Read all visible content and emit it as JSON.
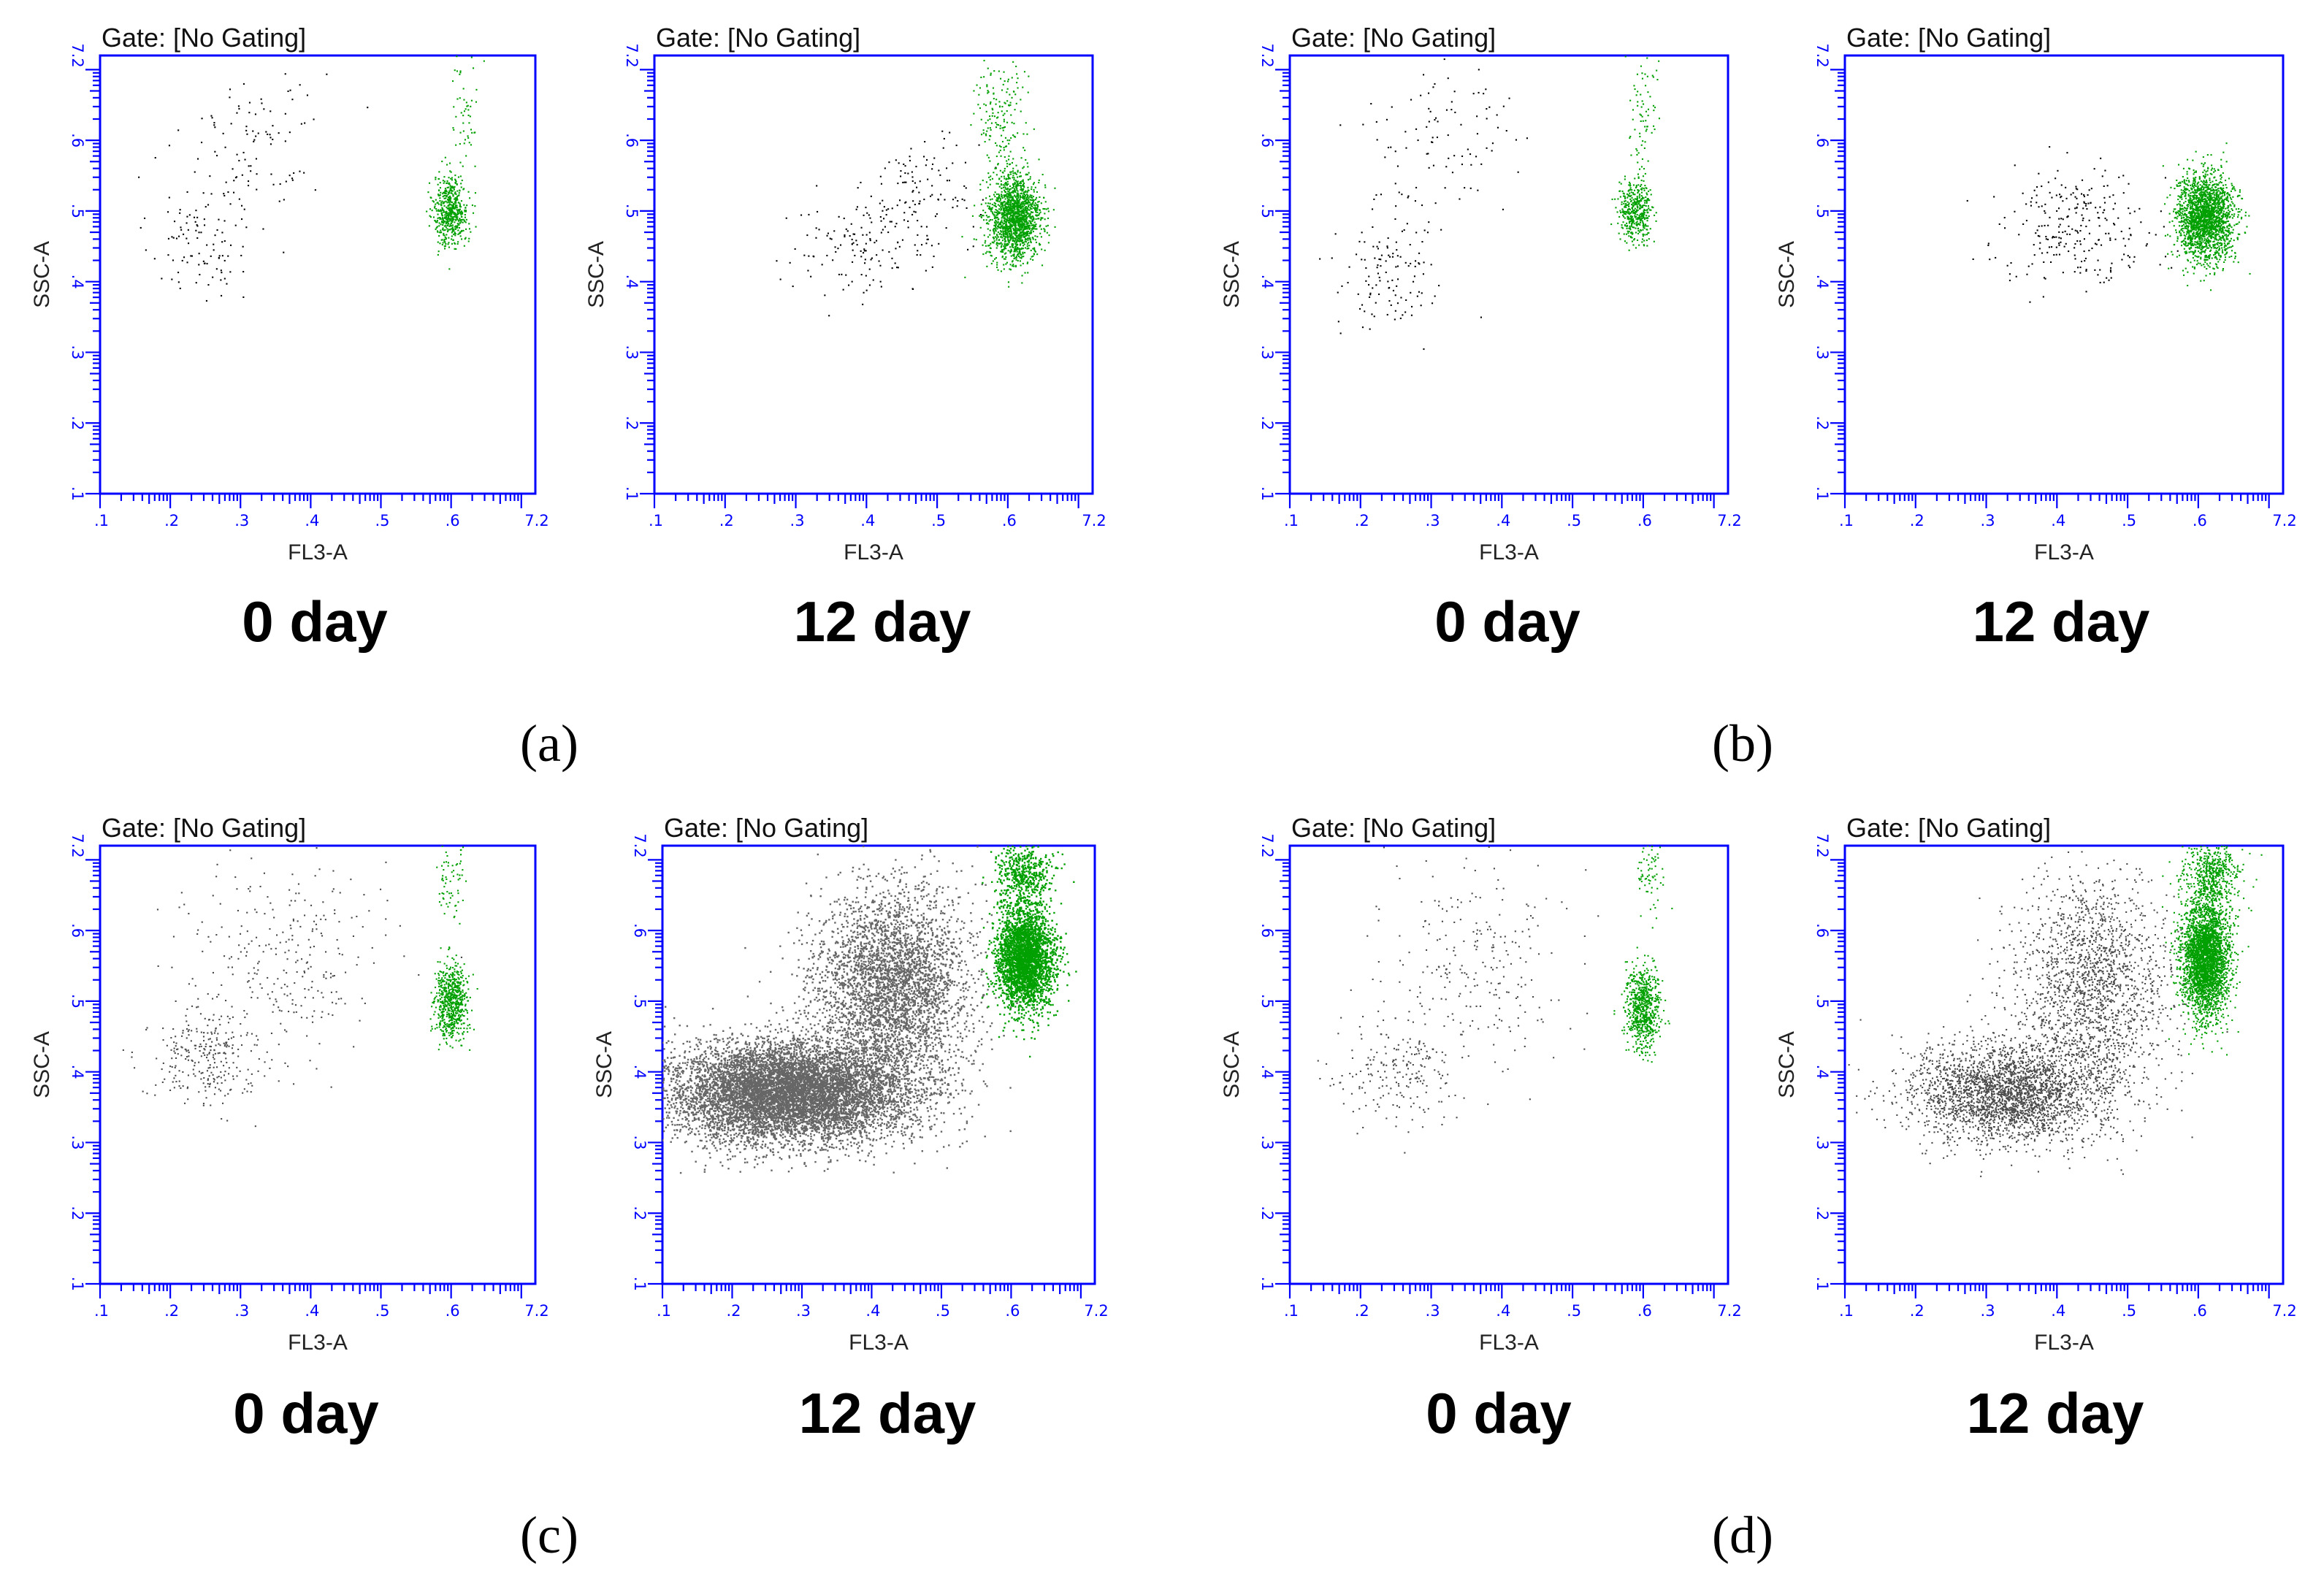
{
  "chart_data": [
    {
      "type": "scatter",
      "panel": "(a)",
      "subtitle": "0 day",
      "gate": "Gate: [No Gating]",
      "xlabel": "FL3-A",
      "ylabel": "SSC-A",
      "xlim": [
        1,
        7.2
      ],
      "ylim": [
        1,
        7.2
      ],
      "ticks": [
        ".1",
        ".2",
        ".3",
        ".4",
        ".5",
        ".6",
        "7.2"
      ],
      "density": 1,
      "series": [
        {
          "name": "gray",
          "color": "#000000",
          "n": 200,
          "clusters": [
            {
              "cx": 2.4,
              "cy": 4.6,
              "sx": 0.35,
              "sy": 0.45,
              "w": 0.5
            },
            {
              "cx": 3.2,
              "cy": 6.0,
              "sx": 0.5,
              "sy": 0.6,
              "w": 0.5
            }
          ]
        },
        {
          "name": "green",
          "color": "#00a000",
          "n": 600,
          "clusters": [
            {
              "cx": 6.0,
              "cy": 5.0,
              "sx": 0.12,
              "sy": 0.25,
              "w": 0.9
            },
            {
              "cx": 6.2,
              "cy": 6.6,
              "sx": 0.12,
              "sy": 0.5,
              "w": 0.1
            }
          ]
        }
      ]
    },
    {
      "type": "scatter",
      "panel": "(a)",
      "subtitle": "12 day",
      "gate": "Gate: [No Gating]",
      "xlabel": "FL3-A",
      "ylabel": "SSC-A",
      "xlim": [
        1,
        7.2
      ],
      "ylim": [
        1,
        7.2
      ],
      "ticks": [
        ".1",
        ".2",
        ".3",
        ".4",
        ".5",
        ".6",
        "7.2"
      ],
      "density": 1,
      "series": [
        {
          "name": "gray",
          "color": "#000000",
          "n": 250,
          "clusters": [
            {
              "cx": 4.0,
              "cy": 4.5,
              "sx": 0.55,
              "sy": 0.35,
              "w": 0.6
            },
            {
              "cx": 4.8,
              "cy": 5.3,
              "sx": 0.4,
              "sy": 0.35,
              "w": 0.4
            }
          ]
        },
        {
          "name": "green",
          "color": "#00a000",
          "n": 1800,
          "clusters": [
            {
              "cx": 6.1,
              "cy": 4.9,
              "sx": 0.18,
              "sy": 0.3,
              "w": 0.9
            },
            {
              "cx": 5.9,
              "cy": 6.4,
              "sx": 0.18,
              "sy": 0.5,
              "w": 0.1
            }
          ]
        }
      ]
    },
    {
      "type": "scatter",
      "panel": "(b)",
      "subtitle": "0 day",
      "gate": "Gate: [No Gating]",
      "xlabel": "FL3-A",
      "ylabel": "SSC-A",
      "xlim": [
        1,
        7.2
      ],
      "ylim": [
        1,
        7.2
      ],
      "ticks": [
        ".1",
        ".2",
        ".3",
        ".4",
        ".5",
        ".6",
        "7.2"
      ],
      "density": 1,
      "series": [
        {
          "name": "gray",
          "color": "#000000",
          "n": 220,
          "clusters": [
            {
              "cx": 2.4,
              "cy": 4.1,
              "sx": 0.35,
              "sy": 0.45,
              "w": 0.55
            },
            {
              "cx": 3.1,
              "cy": 6.0,
              "sx": 0.5,
              "sy": 0.6,
              "w": 0.45
            }
          ]
        },
        {
          "name": "green",
          "color": "#00a000",
          "n": 500,
          "clusters": [
            {
              "cx": 5.9,
              "cy": 5.0,
              "sx": 0.12,
              "sy": 0.2,
              "w": 0.85
            },
            {
              "cx": 6.0,
              "cy": 6.5,
              "sx": 0.1,
              "sy": 0.5,
              "w": 0.15
            }
          ]
        }
      ]
    },
    {
      "type": "scatter",
      "panel": "(b)",
      "subtitle": "12 day",
      "gate": "Gate: [No Gating]",
      "xlabel": "FL3-A",
      "ylabel": "SSC-A",
      "xlim": [
        1,
        7.2
      ],
      "ylim": [
        1,
        7.2
      ],
      "ticks": [
        ".1",
        ".2",
        ".3",
        ".4",
        ".5",
        ".6",
        "7.2"
      ],
      "density": 1,
      "series": [
        {
          "name": "gray",
          "color": "#000000",
          "n": 260,
          "clusters": [
            {
              "cx": 4.3,
              "cy": 4.8,
              "sx": 0.55,
              "sy": 0.4,
              "w": 1.0
            }
          ]
        },
        {
          "name": "green",
          "color": "#00a000",
          "n": 2000,
          "clusters": [
            {
              "cx": 6.1,
              "cy": 4.9,
              "sx": 0.2,
              "sy": 0.3,
              "w": 1.0
            }
          ]
        }
      ]
    },
    {
      "type": "scatter",
      "panel": "(c)",
      "subtitle": "0 day",
      "gate": "Gate: [No Gating]",
      "xlabel": "FL3-A",
      "ylabel": "SSC-A",
      "xlim": [
        1,
        7.2
      ],
      "ylim": [
        1,
        7.2
      ],
      "ticks": [
        ".1",
        ".2",
        ".3",
        ".4",
        ".5",
        ".6",
        "7.2"
      ],
      "density": 1,
      "series": [
        {
          "name": "gray",
          "color": "#4a4a4a",
          "n": 550,
          "clusters": [
            {
              "cx": 2.5,
              "cy": 4.2,
              "sx": 0.4,
              "sy": 0.35,
              "w": 0.5
            },
            {
              "cx": 3.6,
              "cy": 5.6,
              "sx": 0.7,
              "sy": 0.7,
              "w": 0.5
            }
          ]
        },
        {
          "name": "green",
          "color": "#00a000",
          "n": 700,
          "clusters": [
            {
              "cx": 6.0,
              "cy": 5.0,
              "sx": 0.12,
              "sy": 0.25,
              "w": 0.9
            },
            {
              "cx": 6.0,
              "cy": 6.8,
              "sx": 0.1,
              "sy": 0.3,
              "w": 0.1
            }
          ]
        }
      ]
    },
    {
      "type": "scatter",
      "panel": "(c)",
      "subtitle": "12 day",
      "gate": "Gate: [No Gating]",
      "xlabel": "FL3-A",
      "ylabel": "SSC-A",
      "xlim": [
        1,
        7.2
      ],
      "ylim": [
        1,
        7.2
      ],
      "ticks": [
        ".1",
        ".2",
        ".3",
        ".4",
        ".5",
        ".6",
        "7.2"
      ],
      "density": 2,
      "series": [
        {
          "name": "gray",
          "color": "#666666",
          "n": 12000,
          "clusters": [
            {
              "cx": 2.8,
              "cy": 3.7,
              "sx": 0.85,
              "sy": 0.35,
              "w": 0.7
            },
            {
              "cx": 4.3,
              "cy": 5.2,
              "sx": 0.55,
              "sy": 0.7,
              "w": 0.3
            }
          ]
        },
        {
          "name": "green",
          "color": "#00a000",
          "n": 3500,
          "clusters": [
            {
              "cx": 6.2,
              "cy": 5.6,
              "sx": 0.2,
              "sy": 0.35,
              "w": 0.85
            },
            {
              "cx": 6.2,
              "cy": 6.8,
              "sx": 0.2,
              "sy": 0.25,
              "w": 0.15
            }
          ]
        }
      ]
    },
    {
      "type": "scatter",
      "panel": "(d)",
      "subtitle": "0 day",
      "gate": "Gate: [No Gating]",
      "xlabel": "FL3-A",
      "ylabel": "SSC-A",
      "xlim": [
        1,
        7.2
      ],
      "ylim": [
        1,
        7.2
      ],
      "ticks": [
        ".1",
        ".2",
        ".3",
        ".4",
        ".5",
        ".6",
        "7.2"
      ],
      "density": 1,
      "series": [
        {
          "name": "gray",
          "color": "#4a4a4a",
          "n": 450,
          "clusters": [
            {
              "cx": 2.5,
              "cy": 4.0,
              "sx": 0.4,
              "sy": 0.35,
              "w": 0.45
            },
            {
              "cx": 3.6,
              "cy": 5.5,
              "sx": 0.7,
              "sy": 0.8,
              "w": 0.55
            }
          ]
        },
        {
          "name": "green",
          "color": "#00a000",
          "n": 750,
          "clusters": [
            {
              "cx": 6.0,
              "cy": 4.9,
              "sx": 0.12,
              "sy": 0.3,
              "w": 0.9
            },
            {
              "cx": 6.1,
              "cy": 6.8,
              "sx": 0.1,
              "sy": 0.3,
              "w": 0.1
            }
          ]
        }
      ]
    },
    {
      "type": "scatter",
      "panel": "(d)",
      "subtitle": "12 day",
      "gate": "Gate: [No Gating]",
      "xlabel": "FL3-A",
      "ylabel": "SSC-A",
      "xlim": [
        1,
        7.2
      ],
      "ylim": [
        1,
        7.2
      ],
      "ticks": [
        ".1",
        ".2",
        ".3",
        ".4",
        ".5",
        ".6",
        "7.2"
      ],
      "density": 1,
      "series": [
        {
          "name": "gray",
          "color": "#4a4a4a",
          "n": 4500,
          "clusters": [
            {
              "cx": 3.3,
              "cy": 3.7,
              "sx": 0.7,
              "sy": 0.35,
              "w": 0.6
            },
            {
              "cx": 4.5,
              "cy": 5.2,
              "sx": 0.55,
              "sy": 0.8,
              "w": 0.4
            }
          ]
        },
        {
          "name": "green",
          "color": "#00a000",
          "n": 3500,
          "clusters": [
            {
              "cx": 6.1,
              "cy": 5.6,
              "sx": 0.17,
              "sy": 0.4,
              "w": 0.85
            },
            {
              "cx": 6.2,
              "cy": 6.8,
              "sx": 0.2,
              "sy": 0.25,
              "w": 0.15
            }
          ]
        }
      ]
    }
  ],
  "panel_letters": [
    "(a)",
    "(b)",
    "(c)",
    "(d)"
  ]
}
